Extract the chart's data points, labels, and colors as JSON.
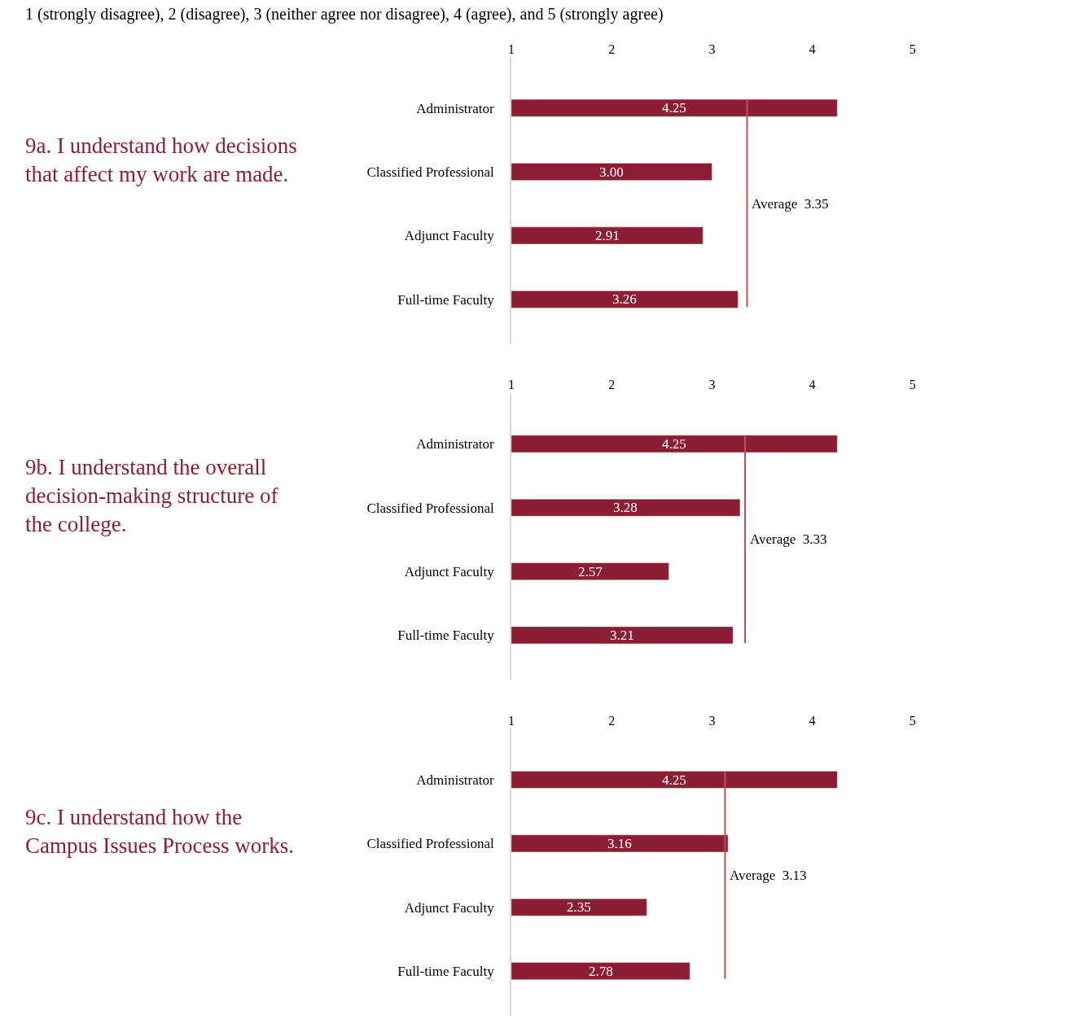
{
  "chart_data": [
    {
      "type": "bar",
      "orientation": "horizontal",
      "title": "9a. I understand how decisions that affect my work are made.",
      "annotations": [
        "1 (strongly disagree), 2 (disagree), 3 (neither agree nor disagree), 4 (agree), and 5 (strongly agree)"
      ],
      "categories": [
        "Administrator",
        "Classified Professional",
        "Adjunct Faculty",
        "Full-time Faculty"
      ],
      "values": [
        4.25,
        3.0,
        2.91,
        3.26
      ],
      "value_labels": [
        "4.25",
        "3.00",
        "2.91",
        "3.26"
      ],
      "color": "#8b1e35",
      "xlim": [
        1,
        6.7
      ],
      "xticks": [
        1,
        2,
        3,
        4,
        5
      ],
      "ref_lines": [
        {
          "axis": "x",
          "value": 3.35,
          "label": "Average  3.35",
          "color": "#c0504d"
        }
      ]
    },
    {
      "type": "bar",
      "orientation": "horizontal",
      "title": "9b. I understand the overall decision-making structure of the college.",
      "categories": [
        "Administrator",
        "Classified Professional",
        "Adjunct Faculty",
        "Full-time Faculty"
      ],
      "values": [
        4.25,
        3.28,
        2.57,
        3.21
      ],
      "value_labels": [
        "4.25",
        "3.28",
        "2.57",
        "3.21"
      ],
      "color": "#8b1e35",
      "xlim": [
        1,
        6.7
      ],
      "xticks": [
        1,
        2,
        3,
        4,
        5
      ],
      "ref_lines": [
        {
          "axis": "x",
          "value": 3.33,
          "label": "Average  3.33",
          "color": "#c0504d"
        }
      ]
    },
    {
      "type": "bar",
      "orientation": "horizontal",
      "title": "9c. I understand how the Campus Issues Process works.",
      "categories": [
        "Administrator",
        "Classified Professional",
        "Adjunct Faculty",
        "Full-time Faculty"
      ],
      "values": [
        4.25,
        3.16,
        2.35,
        2.78
      ],
      "value_labels": [
        "4.25",
        "3.16",
        "2.35",
        "2.78"
      ],
      "color": "#8b1e35",
      "xlim": [
        1,
        6.7
      ],
      "xticks": [
        1,
        2,
        3,
        4,
        5
      ],
      "ref_lines": [
        {
          "axis": "x",
          "value": 3.13,
          "label": "Average  3.13",
          "color": "#c0504d"
        }
      ]
    }
  ]
}
